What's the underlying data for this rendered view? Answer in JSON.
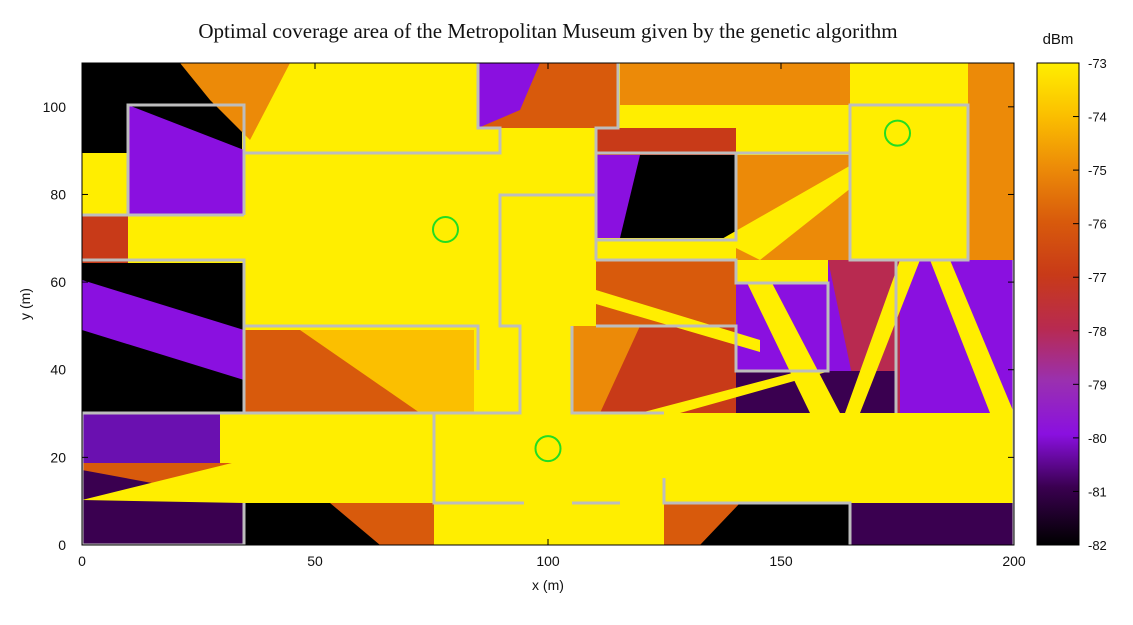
{
  "chart_data": {
    "type": "heatmap",
    "title": "Optimal coverage area of the Metropolitan Museum given by the genetic algorithm",
    "xlabel": "x (m)",
    "ylabel": "y (m)",
    "xlim": [
      0,
      200
    ],
    "ylim": [
      0,
      110
    ],
    "x_ticks": [
      0,
      50,
      100,
      150,
      200
    ],
    "y_ticks": [
      0,
      20,
      40,
      60,
      80,
      100
    ],
    "colorbar": {
      "label": "dBm",
      "range": [
        -82,
        -73
      ],
      "ticks": [
        -73,
        -74,
        -75,
        -76,
        -77,
        -78,
        -79,
        -80,
        -81,
        -82
      ],
      "colors": [
        "#000000",
        "#3a0050",
        "#8a10e0",
        "#9a30b0",
        "#b82a50",
        "#c83a18",
        "#d85a0c",
        "#ec8a08",
        "#fbbf00",
        "#ffee00"
      ]
    },
    "access_points": [
      {
        "x": 78,
        "y": 72
      },
      {
        "x": 100,
        "y": 22
      },
      {
        "x": 175,
        "y": 94
      }
    ],
    "grid": false
  }
}
